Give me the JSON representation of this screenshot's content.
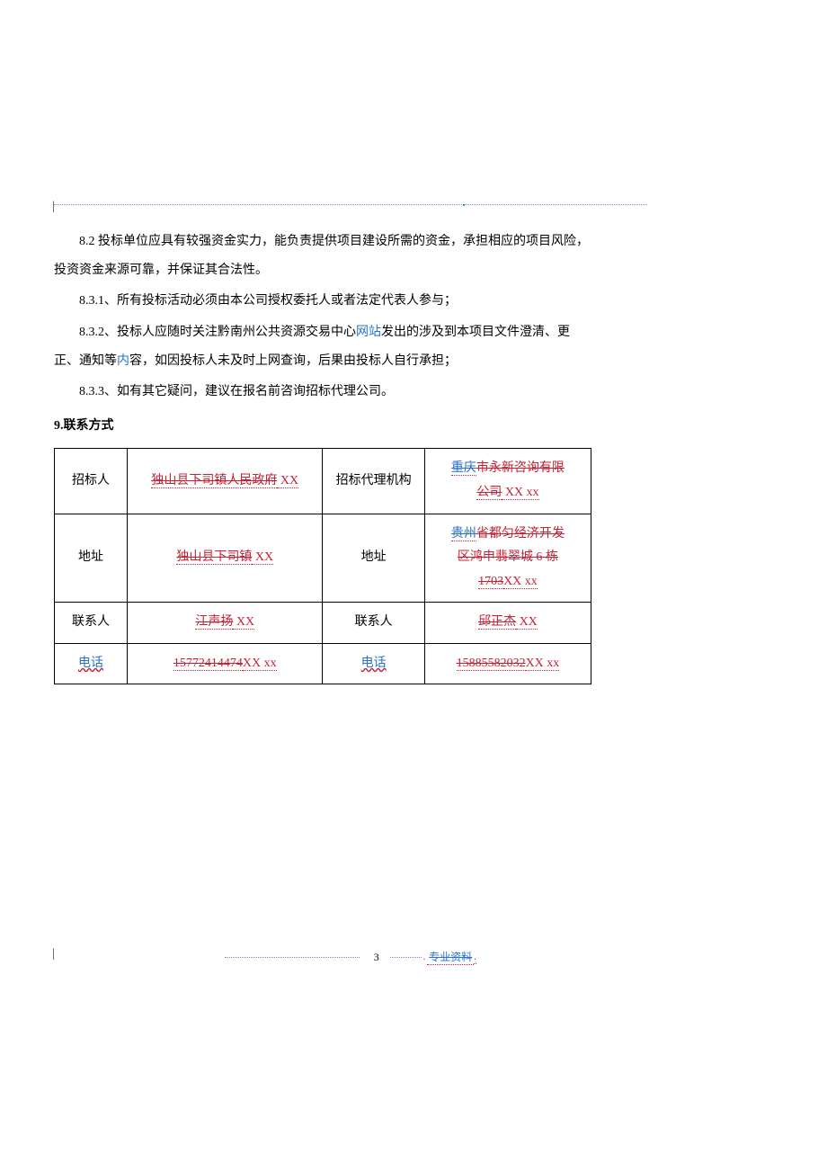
{
  "paragraphs": {
    "p1": "8.2 投标单位应具有较强资金实力，能负责提供项目建设所需的资金，承担相应的项目风险，投资资金来源可靠，并保证其合法性。",
    "p2": "8.3.1、所有投标活动必须由本公司授权委托人或者法定代表人参与；",
    "p3_a": "8.3.2、投标人应随时关注黔南州公共资源交易中心",
    "p3_link": "网站",
    "p3_b": "发出的涉及到本项目文件澄清、更正、通知等",
    "p3_link2": "内",
    "p3_c": "容，如因投标人未及时上网查询，后果由投标人自行承担；",
    "p4": "8.3.3、如有其它疑问，建议在报名前咨询招标代理公司。"
  },
  "heading": "9.联系方式",
  "table": {
    "row1": {
      "c1": "招标人",
      "c2_strike": "独山县下司镇人民政府",
      "c2_suffix": " XX",
      "c3": "招标代理机构",
      "c4_a_strike": "重庆",
      "c4_a_mid": "市永新咨询有限",
      "c4_b_strike": "公司",
      "c4_b_suffix": " XX xx"
    },
    "row2": {
      "c1": "地址",
      "c2_strike": "独山县下司镇",
      "c2_suffix": " XX",
      "c3": "地址",
      "c4_line1_a": "贵州",
      "c4_line1_b": "省都匀经济开发",
      "c4_line2": "区鸿申翡翠城 6 栋",
      "c4_line3_strike": "1703",
      "c4_line3_suffix": "XX xx"
    },
    "row3": {
      "c1": "联系人",
      "c2_strike": "江声扬",
      "c2_suffix": " XX",
      "c3": "联系人",
      "c4_strike": "邱正杰",
      "c4_suffix": " XX"
    },
    "row4": {
      "c1": "电话",
      "c2_strike": "15772414474",
      "c2_suffix": "XX xx",
      "c3": "电话",
      "c4_strike": "15885582032",
      "c4_suffix": "XX xx"
    }
  },
  "footer": {
    "page_num": "3",
    "label_strike": "专业资料",
    "label_suffix": "."
  },
  "colors": {
    "link_blue": "#2a72c8",
    "red": "#c42135",
    "dotted": "#6b95c6"
  }
}
